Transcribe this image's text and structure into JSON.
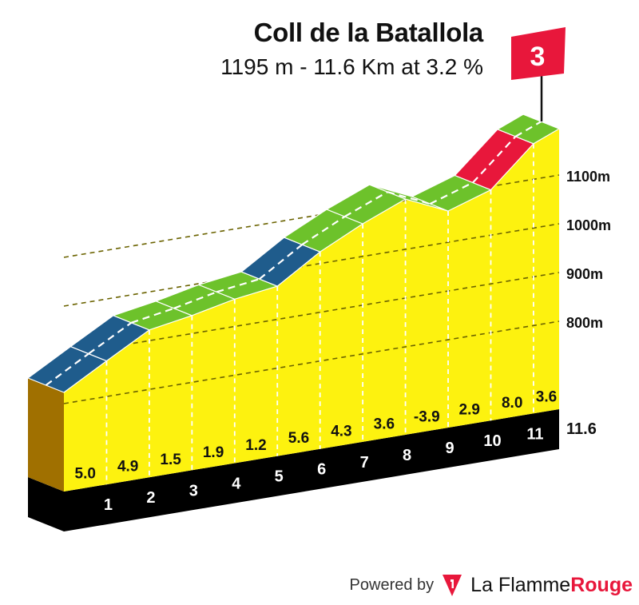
{
  "chart_data": {
    "type": "area",
    "title": "Coll de la Batallola",
    "subtitle": "1195 m - 11.6 Km at 3.2 %",
    "category": "3",
    "km_markers": [
      "1",
      "2",
      "3",
      "4",
      "5",
      "6",
      "7",
      "8",
      "9",
      "10",
      "11"
    ],
    "total_distance_label": "11.6",
    "segment_gradients": [
      "5.0",
      "4.9",
      "1.5",
      "1.9",
      "1.2",
      "5.6",
      "4.3",
      "3.6",
      "-3.9",
      "2.9",
      "8.0",
      "3.6"
    ],
    "x": [
      0,
      1,
      2,
      3,
      4,
      5,
      6,
      7,
      8,
      9,
      10,
      11,
      11.6
    ],
    "elevation": [
      823,
      873,
      922,
      937,
      956,
      968,
      1024,
      1067,
      1103,
      1064,
      1093,
      1173,
      1195
    ],
    "y_ticks": [
      "800m",
      "900m",
      "1000m",
      "1100m"
    ],
    "y_tick_values": [
      800,
      900,
      1000,
      1100
    ],
    "gradient_colors": {
      "blue": "#1f5c8c",
      "green": "#6dc22b",
      "red": "#e8173b",
      "fill": "#fdf20f",
      "base": "#000000",
      "start": "#a07000"
    }
  },
  "footer": {
    "powered_label": "Powered by",
    "brand_plain": "La Flamme",
    "brand_accent": "Rouge"
  }
}
